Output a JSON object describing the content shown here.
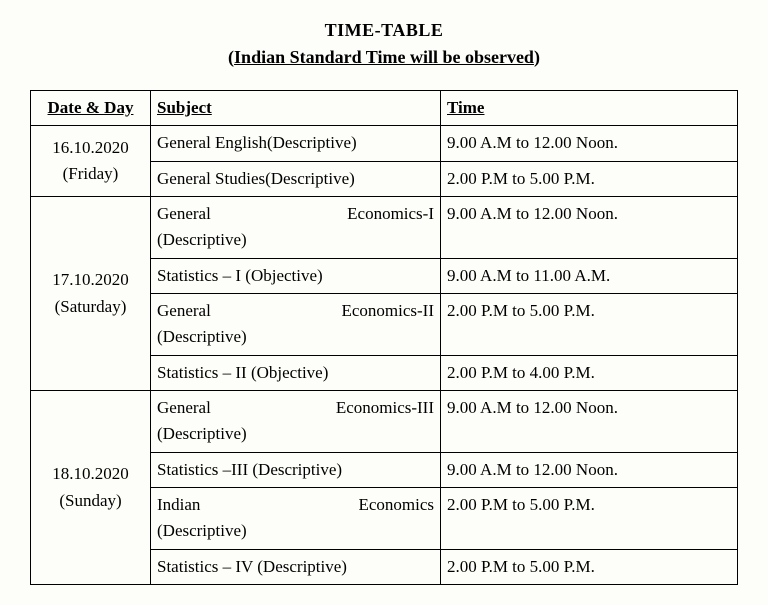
{
  "title": "TIME-TABLE",
  "subtitle_text": "Indian Standard Time will be observed",
  "columns": {
    "date": "Date & Day",
    "subject": "Subject",
    "time": "Time"
  },
  "rows": {
    "d1": {
      "date": "16.10.2020",
      "day": "(Friday)"
    },
    "d2": {
      "date": "17.10.2020",
      "day": "(Saturday)"
    },
    "d3": {
      "date": "18.10.2020",
      "day": "(Sunday)"
    },
    "r1": {
      "subject": "General English(Descriptive)",
      "time": "9.00 A.M to 12.00 Noon."
    },
    "r2": {
      "subject": "General Studies(Descriptive)",
      "time": "2.00 P.M to 5.00 P.M."
    },
    "r3": {
      "subject_l1a": "General",
      "subject_l1b": "Economics-I",
      "subject_l2": "(Descriptive)",
      "time": "9.00 A.M to 12.00 Noon."
    },
    "r4": {
      "subject": "Statistics – I (Objective)",
      "time": "9.00 A.M to 11.00 A.M."
    },
    "r5": {
      "subject_l1a": "General",
      "subject_l1b": "Economics-II",
      "subject_l2": "(Descriptive)",
      "time": "2.00 P.M to 5.00 P.M."
    },
    "r6": {
      "subject": "Statistics – II (Objective)",
      "time": "2.00 P.M to 4.00 P.M."
    },
    "r7": {
      "subject_l1a": "General",
      "subject_l1b": "Economics-III",
      "subject_l2": "(Descriptive)",
      "time": "9.00 A.M to 12.00 Noon."
    },
    "r8": {
      "subject": "Statistics –III (Descriptive)",
      "time": "9.00 A.M to 12.00 Noon."
    },
    "r9": {
      "subject_l1a": "Indian",
      "subject_l1b": "Economics",
      "subject_l2": "(Descriptive)",
      "time": "2.00 P.M to 5.00 P.M."
    },
    "r10": {
      "subject": "Statistics – IV (Descriptive)",
      "time": "2.00 P.M to 5.00 P.M."
    }
  }
}
